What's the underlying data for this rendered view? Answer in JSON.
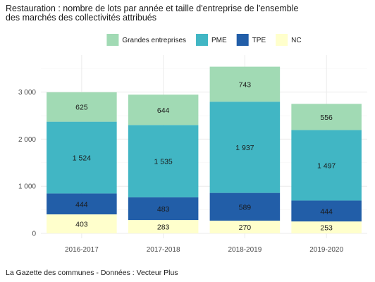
{
  "chart_data": {
    "type": "bar",
    "stacked": true,
    "title_line1": "Restauration : nombre de lots par année et taille d'entreprise de l'ensemble",
    "title_line2": "des marchés des collectivités attribués",
    "xlabel": "",
    "ylabel": "",
    "categories": [
      "2016-2017",
      "2017-2018",
      "2018-2019",
      "2019-2020"
    ],
    "series": [
      {
        "name": "NC",
        "color": "#ffffcc",
        "values": [
          403,
          283,
          270,
          253
        ]
      },
      {
        "name": "TPE",
        "color": "#225ea8",
        "values": [
          444,
          483,
          589,
          444
        ]
      },
      {
        "name": "PME",
        "color": "#41b6c4",
        "values": [
          1524,
          1535,
          1937,
          1497
        ]
      },
      {
        "name": "Grandes entreprises",
        "color": "#a1dab4",
        "values": [
          625,
          644,
          743,
          556
        ]
      }
    ],
    "legend_order": [
      "Grandes entreprises",
      "PME",
      "TPE",
      "NC"
    ],
    "legend_position": "top",
    "ylim": [
      0,
      3560
    ],
    "yticks": [
      0,
      1000,
      2000,
      3000
    ],
    "ytick_labels": [
      "0",
      "1 000",
      "2 000",
      "3 000"
    ],
    "grid": true,
    "grid_color": "#ebebeb"
  },
  "source": "La Gazette des communes - Données : Vecteur Plus"
}
